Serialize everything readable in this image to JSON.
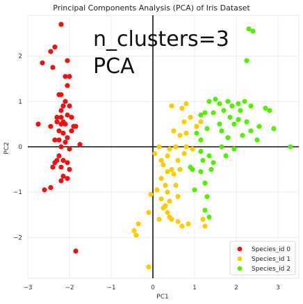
{
  "chart_data": {
    "type": "scatter",
    "title": "Principal Components Analysis (PCA) of Iris Dataset",
    "xlabel": "PC1",
    "ylabel": "PC2",
    "xlim": [
      -3.0,
      3.5
    ],
    "ylim": [
      -2.9,
      2.9
    ],
    "x_ticks": [
      "−3",
      "−2",
      "−1",
      "0",
      "1",
      "2",
      "3"
    ],
    "x_tick_values": [
      -3,
      -2,
      -1,
      0,
      1,
      2,
      3
    ],
    "y_ticks": [
      "−2",
      "−1",
      "0",
      "1",
      "2"
    ],
    "y_tick_values": [
      -2,
      -1,
      0,
      1,
      2
    ],
    "grid": true,
    "reference_lines": {
      "x": 0,
      "y": 0
    },
    "annotations": [
      "n_clusters=3",
      "PCA"
    ],
    "legend_position": "lower-right",
    "series": [
      {
        "name": "Species_id 0",
        "color": "#ee1111",
        "points": [
          [
            -2.2,
            2.7
          ],
          [
            -2.35,
            2.2
          ],
          [
            -2.45,
            2.1
          ],
          [
            -2.65,
            1.85
          ],
          [
            -2.4,
            1.75
          ],
          [
            -2.05,
            1.9
          ],
          [
            -2.1,
            1.55
          ],
          [
            -2.0,
            1.55
          ],
          [
            -2.25,
            1.15
          ],
          [
            -2.2,
            1.15
          ],
          [
            -2.05,
            1.35
          ],
          [
            -2.1,
            1.0
          ],
          [
            -2.15,
            0.9
          ],
          [
            -2.0,
            0.9
          ],
          [
            -2.2,
            0.8
          ],
          [
            -2.3,
            0.65
          ],
          [
            -2.2,
            0.65
          ],
          [
            -2.05,
            0.7
          ],
          [
            -1.95,
            0.65
          ],
          [
            -2.3,
            0.55
          ],
          [
            -2.2,
            0.5
          ],
          [
            -2.15,
            0.55
          ],
          [
            -2.1,
            0.5
          ],
          [
            -1.9,
            0.45
          ],
          [
            -1.85,
            0.45
          ],
          [
            -2.75,
            0.5
          ],
          [
            -2.45,
            0.45
          ],
          [
            -2.25,
            0.35
          ],
          [
            -2.15,
            0.3
          ],
          [
            -1.95,
            0.35
          ],
          [
            -2.35,
            0.15
          ],
          [
            -2.25,
            0.15
          ],
          [
            -2.1,
            0.1
          ],
          [
            -2.05,
            0.2
          ],
          [
            -1.75,
            0.05
          ],
          [
            -2.2,
            0.0
          ],
          [
            -2.0,
            -0.05
          ],
          [
            -2.25,
            -0.2
          ],
          [
            -2.35,
            -0.35
          ],
          [
            -2.3,
            -0.3
          ],
          [
            -2.15,
            -0.3
          ],
          [
            -2.05,
            -0.35
          ],
          [
            -2.4,
            -0.45
          ],
          [
            -2.2,
            -0.45
          ],
          [
            -2.0,
            -0.5
          ],
          [
            -2.15,
            -0.65
          ],
          [
            -2.05,
            -0.7
          ],
          [
            -2.2,
            -0.75
          ],
          [
            -2.45,
            -0.9
          ],
          [
            -2.6,
            -0.95
          ],
          [
            -1.85,
            -2.3
          ]
        ]
      },
      {
        "name": "Species_id 1",
        "color": "#ffcc00",
        "points": [
          [
            0.45,
            0.9
          ],
          [
            0.7,
            0.85
          ],
          [
            0.8,
            0.95
          ],
          [
            0.9,
            0.65
          ],
          [
            0.75,
            0.55
          ],
          [
            0.5,
            0.35
          ],
          [
            0.65,
            0.25
          ],
          [
            0.8,
            0.3
          ],
          [
            1.05,
            0.45
          ],
          [
            1.15,
            0.55
          ],
          [
            0.4,
            -0.05
          ],
          [
            0.55,
            0.0
          ],
          [
            0.8,
            0.0
          ],
          [
            0.95,
            -0.05
          ],
          [
            0.15,
            0.0
          ],
          [
            0.05,
            -0.15
          ],
          [
            0.2,
            -0.3
          ],
          [
            0.35,
            -0.2
          ],
          [
            0.6,
            -0.3
          ],
          [
            0.75,
            -0.15
          ],
          [
            0.25,
            -0.4
          ],
          [
            0.45,
            -0.5
          ],
          [
            0.65,
            -0.5
          ],
          [
            0.35,
            -0.55
          ],
          [
            0.5,
            -0.6
          ],
          [
            0.2,
            -0.7
          ],
          [
            0.3,
            -0.85
          ],
          [
            0.55,
            -0.85
          ],
          [
            0.1,
            -0.95
          ],
          [
            0.35,
            -1.0
          ],
          [
            -0.05,
            -1.05
          ],
          [
            0.2,
            -1.15
          ],
          [
            0.4,
            -1.2
          ],
          [
            0.6,
            -1.1
          ],
          [
            0.3,
            -1.3
          ],
          [
            0.25,
            -1.35
          ],
          [
            -0.1,
            -1.45
          ],
          [
            0.4,
            -1.55
          ],
          [
            0.15,
            -1.6
          ],
          [
            0.6,
            -1.65
          ],
          [
            -0.45,
            -1.85
          ],
          [
            -0.35,
            -1.7
          ],
          [
            -0.4,
            -1.95
          ],
          [
            -0.1,
            -2.65
          ],
          [
            0.35,
            -1.45
          ],
          [
            0.45,
            -1.6
          ],
          [
            0.7,
            -1.75
          ],
          [
            0.85,
            -1.7
          ],
          [
            1.25,
            -1.75
          ],
          [
            1.2,
            -1.6
          ]
        ]
      },
      {
        "name": "Species_id 2",
        "color": "#55ee00",
        "points": [
          [
            2.3,
            2.6
          ],
          [
            2.4,
            2.55
          ],
          [
            2.25,
            1.9
          ],
          [
            1.5,
            1.05
          ],
          [
            1.35,
            1.0
          ],
          [
            1.6,
            0.95
          ],
          [
            1.8,
            1.0
          ],
          [
            1.9,
            0.9
          ],
          [
            2.05,
            0.95
          ],
          [
            2.2,
            1.0
          ],
          [
            2.35,
            0.9
          ],
          [
            2.1,
            0.8
          ],
          [
            1.7,
            0.8
          ],
          [
            1.45,
            0.75
          ],
          [
            1.25,
            0.75
          ],
          [
            1.15,
            0.7
          ],
          [
            2.7,
            0.85
          ],
          [
            2.8,
            0.8
          ],
          [
            1.85,
            0.65
          ],
          [
            2.05,
            0.6
          ],
          [
            2.25,
            0.55
          ],
          [
            1.6,
            0.5
          ],
          [
            1.95,
            0.5
          ],
          [
            2.55,
            0.45
          ],
          [
            2.9,
            0.4
          ],
          [
            1.3,
            0.4
          ],
          [
            1.65,
            0.35
          ],
          [
            2.35,
            0.35
          ],
          [
            1.05,
            0.3
          ],
          [
            2.15,
            0.25
          ],
          [
            1.8,
            0.2
          ],
          [
            2.5,
            0.15
          ],
          [
            1.15,
            0.15
          ],
          [
            3.3,
            0.0
          ],
          [
            1.65,
            0.0
          ],
          [
            1.95,
            -0.05
          ],
          [
            1.15,
            -0.1
          ],
          [
            1.35,
            -0.2
          ],
          [
            1.75,
            -0.2
          ],
          [
            1.2,
            -0.3
          ],
          [
            1.45,
            -0.35
          ],
          [
            0.9,
            -0.45
          ],
          [
            0.95,
            -0.5
          ],
          [
            1.15,
            -0.55
          ],
          [
            1.4,
            -0.5
          ],
          [
            1.25,
            -0.8
          ],
          [
            1.25,
            -1.4
          ],
          [
            1.35,
            -1.55
          ],
          [
            1.3,
            -1.1
          ],
          [
            1.0,
            -0.95
          ]
        ]
      }
    ]
  }
}
